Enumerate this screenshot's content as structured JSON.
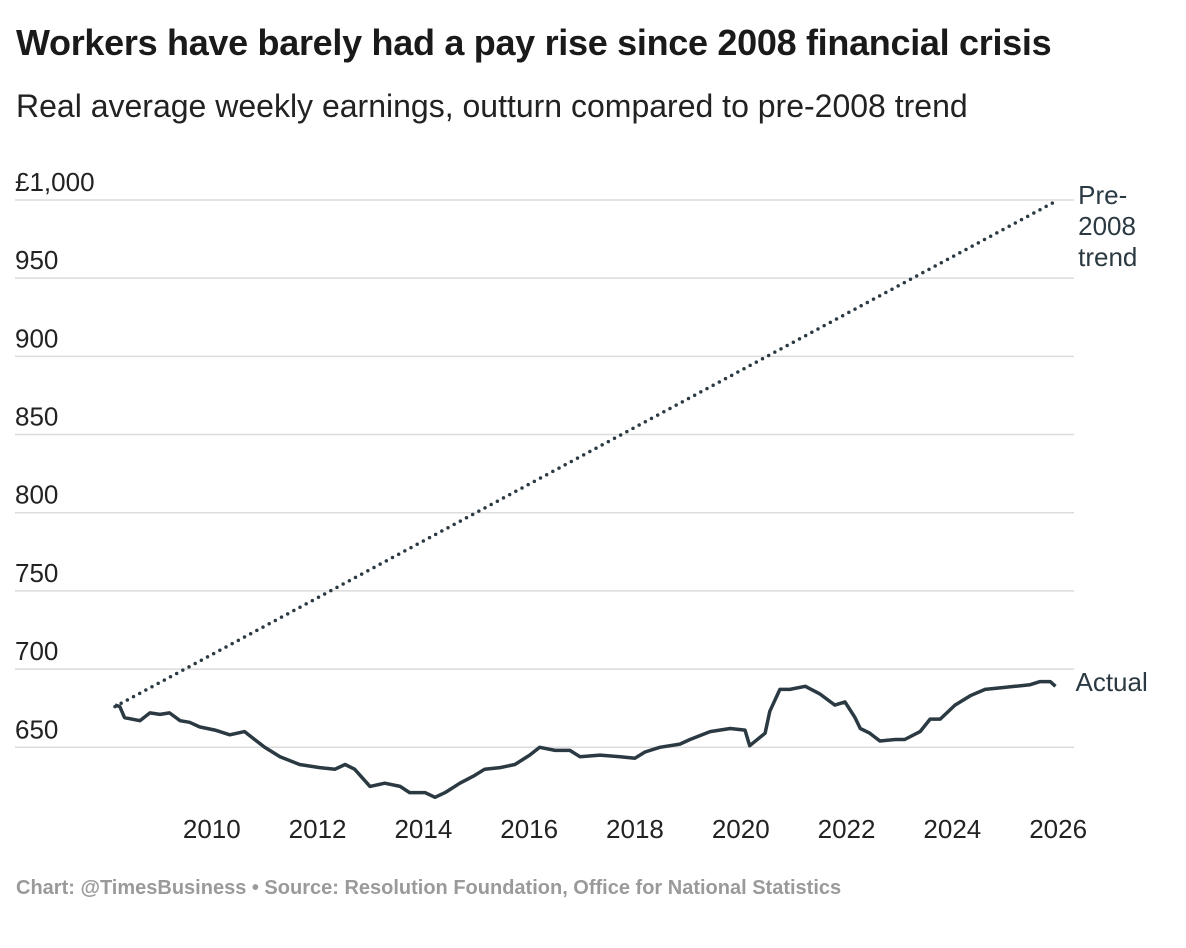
{
  "chart_data": {
    "type": "line",
    "title": "Workers have barely had a pay rise since 2008 financial crisis",
    "subtitle": "Real average weekly earnings, outturn compared to pre-2008 trend",
    "source": "Chart: @TimesBusiness • Source: Resolution Foundation, Office for National Statistics",
    "xlim": [
      2008,
      2026.3
    ],
    "xticks": [
      2010,
      2012,
      2014,
      2016,
      2018,
      2020,
      2022,
      2024,
      2026
    ],
    "ylim": [
      615,
      1000
    ],
    "yticks": [
      {
        "value": 1000,
        "label": "£1,000"
      },
      950,
      900,
      850,
      800,
      750,
      700,
      650
    ],
    "grid": true,
    "series": [
      {
        "name": "Pre-2008 trend",
        "color": "#2b3a42",
        "dash": "dotted",
        "x": [
          2008.17,
          2026
        ],
        "values": [
          676,
          1000
        ]
      },
      {
        "name": "Actual",
        "color": "#2b3a42",
        "dash": "solid",
        "x": [
          2008.17,
          2008.26,
          2008.35,
          2008.64,
          2008.83,
          2009.02,
          2009.2,
          2009.4,
          2009.58,
          2009.77,
          2010.06,
          2010.34,
          2010.62,
          2010.81,
          2011.0,
          2011.29,
          2011.66,
          2012.04,
          2012.33,
          2012.52,
          2012.7,
          2012.99,
          2013.27,
          2013.56,
          2013.74,
          2014.03,
          2014.22,
          2014.41,
          2014.69,
          2014.97,
          2015.16,
          2015.45,
          2015.73,
          2016.01,
          2016.2,
          2016.49,
          2016.77,
          2016.96,
          2017.34,
          2017.72,
          2018.0,
          2018.19,
          2018.47,
          2018.85,
          2019.04,
          2019.42,
          2019.8,
          2020.08,
          2020.17,
          2020.46,
          2020.55,
          2020.74,
          2020.93,
          2021.22,
          2021.5,
          2021.78,
          2021.97,
          2022.16,
          2022.26,
          2022.44,
          2022.63,
          2022.92,
          2023.1,
          2023.39,
          2023.58,
          2023.77,
          2024.05,
          2024.34,
          2024.62,
          2024.9,
          2025.19,
          2025.47,
          2025.66,
          2025.85,
          2025.95
        ],
        "values": [
          677,
          676,
          669,
          667,
          672,
          671,
          672,
          667,
          666,
          663,
          661,
          658,
          660,
          655,
          650,
          644,
          639,
          637,
          636,
          639,
          636,
          625,
          627,
          625,
          621,
          621,
          618,
          621,
          627,
          632,
          636,
          637,
          639,
          645,
          650,
          648,
          648,
          644,
          645,
          644,
          643,
          647,
          650,
          652,
          655,
          660,
          662,
          661,
          651,
          659,
          673,
          687,
          687,
          689,
          684,
          677,
          679,
          669,
          662,
          659,
          654,
          655,
          655,
          660,
          668,
          668,
          677,
          683,
          687,
          688,
          689,
          690,
          692,
          692,
          689
        ]
      }
    ]
  }
}
